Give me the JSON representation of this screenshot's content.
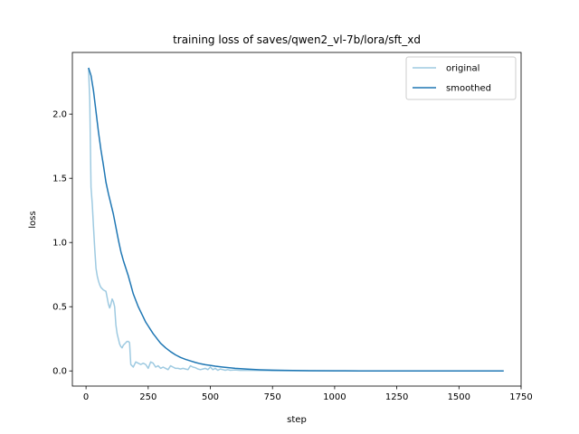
{
  "chart_data": {
    "type": "line",
    "title": "training loss of saves/qwen2_vl-7b/lora/sft_xd",
    "xlabel": "step",
    "ylabel": "loss",
    "xlim": [
      -55,
      1750
    ],
    "ylim": [
      -0.118,
      2.48
    ],
    "x_ticks": [
      0,
      250,
      500,
      750,
      1000,
      1250,
      1500,
      1750
    ],
    "y_ticks": [
      0.0,
      0.5,
      1.0,
      1.5,
      2.0
    ],
    "grid": false,
    "legend_position": "top-right",
    "series": [
      {
        "name": "original",
        "color": "#9ecae1",
        "points": [
          [
            10,
            2.36
          ],
          [
            15,
            2.1
          ],
          [
            20,
            1.43
          ],
          [
            25,
            1.3
          ],
          [
            30,
            1.12
          ],
          [
            35,
            0.95
          ],
          [
            40,
            0.8
          ],
          [
            45,
            0.74
          ],
          [
            50,
            0.7
          ],
          [
            55,
            0.67
          ],
          [
            60,
            0.65
          ],
          [
            70,
            0.63
          ],
          [
            80,
            0.62
          ],
          [
            85,
            0.57
          ],
          [
            90,
            0.52
          ],
          [
            95,
            0.49
          ],
          [
            100,
            0.52
          ],
          [
            105,
            0.56
          ],
          [
            110,
            0.54
          ],
          [
            115,
            0.5
          ],
          [
            120,
            0.36
          ],
          [
            125,
            0.29
          ],
          [
            130,
            0.25
          ],
          [
            135,
            0.21
          ],
          [
            140,
            0.19
          ],
          [
            145,
            0.18
          ],
          [
            150,
            0.2
          ],
          [
            155,
            0.21
          ],
          [
            160,
            0.22
          ],
          [
            165,
            0.23
          ],
          [
            170,
            0.23
          ],
          [
            175,
            0.22
          ],
          [
            180,
            0.05
          ],
          [
            185,
            0.04
          ],
          [
            190,
            0.03
          ],
          [
            200,
            0.07
          ],
          [
            210,
            0.06
          ],
          [
            220,
            0.05
          ],
          [
            230,
            0.06
          ],
          [
            240,
            0.05
          ],
          [
            250,
            0.02
          ],
          [
            260,
            0.07
          ],
          [
            270,
            0.06
          ],
          [
            280,
            0.03
          ],
          [
            290,
            0.04
          ],
          [
            300,
            0.02
          ],
          [
            310,
            0.03
          ],
          [
            320,
            0.02
          ],
          [
            330,
            0.01
          ],
          [
            340,
            0.04
          ],
          [
            350,
            0.03
          ],
          [
            360,
            0.02
          ],
          [
            370,
            0.02
          ],
          [
            380,
            0.015
          ],
          [
            390,
            0.02
          ],
          [
            400,
            0.015
          ],
          [
            410,
            0.01
          ],
          [
            420,
            0.04
          ],
          [
            430,
            0.03
          ],
          [
            440,
            0.025
          ],
          [
            450,
            0.015
          ],
          [
            460,
            0.01
          ],
          [
            470,
            0.015
          ],
          [
            480,
            0.02
          ],
          [
            490,
            0.01
          ],
          [
            500,
            0.03
          ],
          [
            510,
            0.01
          ],
          [
            520,
            0.02
          ],
          [
            530,
            0.005
          ],
          [
            540,
            0.015
          ],
          [
            550,
            0.01
          ],
          [
            560,
            0.005
          ],
          [
            570,
            0.01
          ],
          [
            580,
            0.005
          ],
          [
            600,
            0.008
          ],
          [
            620,
            0.004
          ],
          [
            650,
            0.005
          ],
          [
            700,
            0.003
          ],
          [
            750,
            0.002
          ],
          [
            800,
            0.002
          ],
          [
            900,
            0.001
          ],
          [
            1000,
            0.001
          ],
          [
            1100,
            0.0
          ],
          [
            1200,
            0.0
          ],
          [
            1300,
            0.0
          ],
          [
            1400,
            0.0
          ],
          [
            1500,
            0.0
          ],
          [
            1600,
            0.0
          ],
          [
            1680,
            0.0
          ]
        ]
      },
      {
        "name": "smoothed",
        "color": "#1f77b4",
        "points": [
          [
            10,
            2.36
          ],
          [
            20,
            2.3
          ],
          [
            30,
            2.18
          ],
          [
            40,
            2.02
          ],
          [
            50,
            1.86
          ],
          [
            60,
            1.72
          ],
          [
            70,
            1.6
          ],
          [
            80,
            1.47
          ],
          [
            90,
            1.38
          ],
          [
            100,
            1.3
          ],
          [
            110,
            1.22
          ],
          [
            120,
            1.12
          ],
          [
            130,
            1.02
          ],
          [
            140,
            0.93
          ],
          [
            150,
            0.86
          ],
          [
            160,
            0.8
          ],
          [
            170,
            0.74
          ],
          [
            180,
            0.67
          ],
          [
            190,
            0.6
          ],
          [
            200,
            0.55
          ],
          [
            210,
            0.5
          ],
          [
            220,
            0.46
          ],
          [
            230,
            0.42
          ],
          [
            240,
            0.38
          ],
          [
            250,
            0.35
          ],
          [
            260,
            0.32
          ],
          [
            270,
            0.29
          ],
          [
            280,
            0.265
          ],
          [
            290,
            0.24
          ],
          [
            300,
            0.215
          ],
          [
            320,
            0.18
          ],
          [
            340,
            0.15
          ],
          [
            360,
            0.125
          ],
          [
            380,
            0.105
          ],
          [
            400,
            0.09
          ],
          [
            420,
            0.078
          ],
          [
            440,
            0.066
          ],
          [
            460,
            0.056
          ],
          [
            480,
            0.048
          ],
          [
            500,
            0.043
          ],
          [
            520,
            0.037
          ],
          [
            550,
            0.03
          ],
          [
            600,
            0.02
          ],
          [
            650,
            0.014
          ],
          [
            700,
            0.009
          ],
          [
            750,
            0.006
          ],
          [
            800,
            0.004
          ],
          [
            900,
            0.002
          ],
          [
            1000,
            0.001
          ],
          [
            1100,
            0.0
          ],
          [
            1200,
            0.0
          ],
          [
            1300,
            0.0
          ],
          [
            1400,
            0.0
          ],
          [
            1500,
            0.0
          ],
          [
            1600,
            0.0
          ],
          [
            1680,
            0.0
          ]
        ]
      }
    ]
  }
}
